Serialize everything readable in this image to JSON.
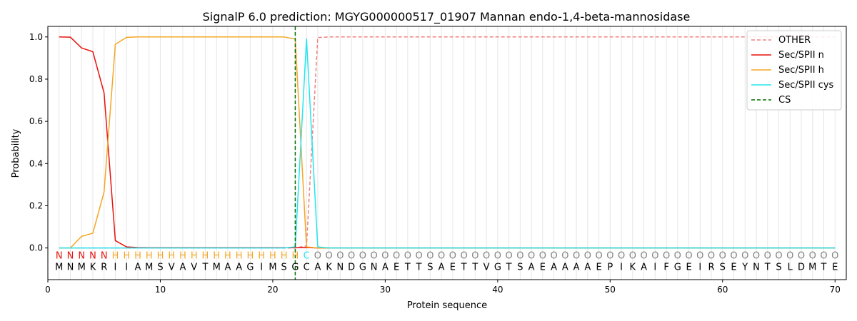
{
  "chart_data": {
    "type": "line",
    "title": "SignalP 6.0 prediction: MGYG000000517_01907 Mannan endo-1,4-beta-mannosidase",
    "xlabel": "Protein sequence",
    "ylabel": "Probability",
    "xlim": [
      0,
      71
    ],
    "ylim": [
      -0.15,
      1.05
    ],
    "xticks": [
      0,
      10,
      20,
      30,
      40,
      50,
      60,
      70
    ],
    "yticks": [
      0.0,
      0.2,
      0.4,
      0.6,
      0.8,
      1.0
    ],
    "x": [
      1,
      2,
      3,
      4,
      5,
      6,
      7,
      8,
      9,
      10,
      11,
      12,
      13,
      14,
      15,
      16,
      17,
      18,
      19,
      20,
      21,
      22,
      23,
      24,
      25,
      26,
      27,
      28,
      29,
      30,
      31,
      32,
      33,
      34,
      35,
      36,
      37,
      38,
      39,
      40,
      41,
      42,
      43,
      44,
      45,
      46,
      47,
      48,
      49,
      50,
      51,
      52,
      53,
      54,
      55,
      56,
      57,
      58,
      59,
      60,
      61,
      62,
      63,
      64,
      65,
      66,
      67,
      68,
      69,
      70
    ],
    "series": [
      {
        "name": "OTHER",
        "color": "#f08080",
        "dashed": true,
        "values": [
          0,
          0,
          0,
          0,
          0,
          0,
          0,
          0,
          0,
          0,
          0,
          0,
          0,
          0,
          0,
          0,
          0,
          0,
          0,
          0,
          0,
          0,
          0.01,
          0.997,
          1,
          1,
          1,
          1,
          1,
          1,
          1,
          1,
          1,
          1,
          1,
          1,
          1,
          1,
          1,
          1,
          1,
          1,
          1,
          1,
          1,
          1,
          1,
          1,
          1,
          1,
          1,
          1,
          1,
          1,
          1,
          1,
          1,
          1,
          1,
          1,
          1,
          1,
          1,
          1,
          1,
          1,
          1,
          1,
          1,
          1
        ]
      },
      {
        "name": "Sec/SPII n",
        "color": "#e8120c",
        "dashed": false,
        "values": [
          1.0,
          0.999,
          0.948,
          0.93,
          0.735,
          0.035,
          0.005,
          0.002,
          0.001,
          0.001,
          0.001,
          0.001,
          0.001,
          0.001,
          0.001,
          0.001,
          0.001,
          0.001,
          0.001,
          0.001,
          0.001,
          0.001,
          0.002,
          0,
          0,
          0,
          0,
          0,
          0,
          0,
          0,
          0,
          0,
          0,
          0,
          0,
          0,
          0,
          0,
          0,
          0,
          0,
          0,
          0,
          0,
          0,
          0,
          0,
          0,
          0,
          0,
          0,
          0,
          0,
          0,
          0,
          0,
          0,
          0,
          0,
          0,
          0,
          0,
          0,
          0,
          0,
          0,
          0,
          0,
          0
        ]
      },
      {
        "name": "Sec/SPII h",
        "color": "#f5a623",
        "dashed": false,
        "values": [
          0,
          0,
          0.055,
          0.07,
          0.265,
          0.965,
          0.998,
          1.0,
          1.0,
          1.0,
          1.0,
          1.0,
          1.0,
          1.0,
          1.0,
          1.0,
          1.0,
          1.0,
          1.0,
          1.0,
          1.0,
          0.99,
          0.005,
          0,
          0,
          0,
          0,
          0,
          0,
          0,
          0,
          0,
          0,
          0,
          0,
          0,
          0,
          0,
          0,
          0,
          0,
          0,
          0,
          0,
          0,
          0,
          0,
          0,
          0,
          0,
          0,
          0,
          0,
          0,
          0,
          0,
          0,
          0,
          0,
          0,
          0,
          0,
          0,
          0,
          0,
          0,
          0,
          0,
          0,
          0
        ]
      },
      {
        "name": "Sec/SPII cys",
        "color": "#22e5f0",
        "dashed": false,
        "values": [
          0,
          0,
          0,
          0,
          0,
          0,
          0,
          0,
          0,
          0,
          0,
          0,
          0,
          0,
          0,
          0,
          0,
          0,
          0,
          0,
          0,
          0.005,
          0.99,
          0.005,
          0,
          0,
          0,
          0,
          0,
          0,
          0,
          0,
          0,
          0,
          0,
          0,
          0,
          0,
          0,
          0,
          0,
          0,
          0,
          0,
          0,
          0,
          0,
          0,
          0,
          0,
          0,
          0,
          0,
          0,
          0,
          0,
          0,
          0,
          0,
          0,
          0,
          0,
          0,
          0,
          0,
          0,
          0,
          0,
          0,
          0
        ]
      }
    ],
    "cs": {
      "name": "CS",
      "x": 22,
      "color": "#007000"
    },
    "sequence": [
      "M",
      "N",
      "M",
      "K",
      "R",
      "I",
      "I",
      "A",
      "M",
      "S",
      "V",
      "A",
      "V",
      "T",
      "M",
      "A",
      "A",
      "G",
      "I",
      "M",
      "S",
      "G",
      "C",
      "A",
      "K",
      "N",
      "D",
      "G",
      "N",
      "A",
      "E",
      "T",
      "T",
      "S",
      "A",
      "E",
      "T",
      "T",
      "V",
      "G",
      "T",
      "S",
      "A",
      "E",
      "A",
      "A",
      "A",
      "A",
      "E",
      "P",
      "I",
      "K",
      "A",
      "I",
      "F",
      "G",
      "E",
      "I",
      "R",
      "S",
      "E",
      "Y",
      "N",
      "T",
      "S",
      "L",
      "D",
      "M",
      "T",
      "E"
    ],
    "labels": [
      "N",
      "N",
      "N",
      "N",
      "N",
      "H",
      "H",
      "H",
      "H",
      "H",
      "H",
      "H",
      "H",
      "H",
      "H",
      "H",
      "H",
      "H",
      "H",
      "H",
      "H",
      "H",
      "C",
      "O",
      "O",
      "O",
      "O",
      "O",
      "O",
      "O",
      "O",
      "O",
      "O",
      "O",
      "O",
      "O",
      "O",
      "O",
      "O",
      "O",
      "O",
      "O",
      "O",
      "O",
      "O",
      "O",
      "O",
      "O",
      "O",
      "O",
      "O",
      "O",
      "O",
      "O",
      "O",
      "O",
      "O",
      "O",
      "O",
      "O",
      "O",
      "O",
      "O",
      "O",
      "O",
      "O",
      "O",
      "O",
      "O",
      "O"
    ],
    "label_colors": {
      "N": "#e8120c",
      "H": "#f5a623",
      "C": "#22e5f0",
      "O": "#808080"
    },
    "legend": {
      "location": "top-right"
    },
    "grid": "vertical-per-residue"
  }
}
